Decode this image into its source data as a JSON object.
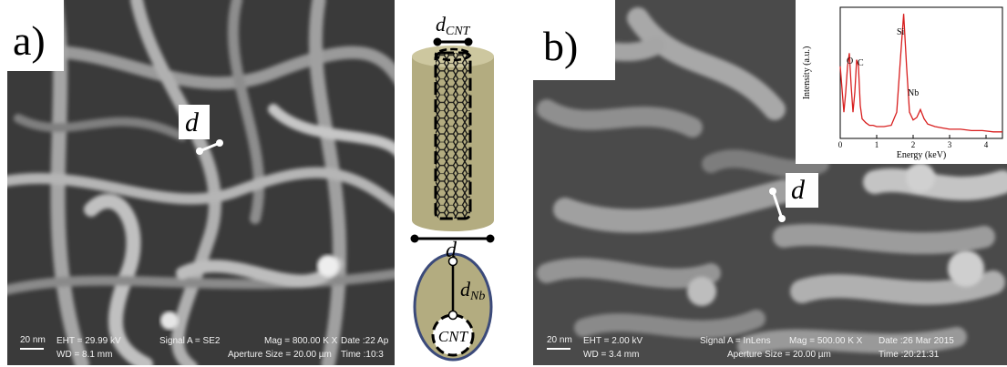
{
  "panel_a": {
    "label": "a)",
    "d_label": "d",
    "scale_bar": "20 nm",
    "info": [
      "EHT = 29.99 kV",
      "WD = 8.1 mm",
      "Signal A = SE2",
      "Aperture Size = 20.00 µm",
      "Mag = 800.00 K X",
      "Date :22 Ap",
      "Time :10:3"
    ]
  },
  "schematic": {
    "d_cnt": {
      "symbol": "d",
      "subscript": "CNT"
    },
    "d_label": "d",
    "d_nb": {
      "symbol": "d",
      "subscript": "Nb"
    },
    "cnt_label": "CNT"
  },
  "panel_b": {
    "label": "b)",
    "d_label": "d",
    "scale_bar": "20 nm",
    "info": [
      "EHT = 2.00 kV",
      "WD = 3.4 mm",
      "Signal A = InLens",
      "Aperture Size = 20.00 µm",
      "Mag = 500.00 K X",
      "Date :26 Mar 2015",
      "Time :20:21:31"
    ],
    "inset": {
      "type": "line",
      "x_label": "Energy (keV)",
      "y_label": "Intensity (a.u.)",
      "color": "#d81e1e",
      "xlim": [
        0,
        4.45
      ],
      "xticks": [
        0,
        1,
        2,
        3,
        4
      ],
      "ylim": [
        0,
        100
      ],
      "x": [
        0,
        0.1,
        0.15,
        0.2,
        0.25,
        0.3,
        0.35,
        0.4,
        0.45,
        0.5,
        0.55,
        0.6,
        0.7,
        0.8,
        0.9,
        1.0,
        1.2,
        1.4,
        1.55,
        1.65,
        1.74,
        1.82,
        1.9,
        2.0,
        2.1,
        2.2,
        2.3,
        2.4,
        2.6,
        2.8,
        3.0,
        3.3,
        3.6,
        3.9,
        4.2,
        4.45
      ],
      "values": [
        55,
        20,
        35,
        55,
        65,
        40,
        20,
        35,
        60,
        55,
        25,
        15,
        12,
        10,
        10,
        9,
        9,
        10,
        20,
        60,
        95,
        55,
        20,
        14,
        16,
        22,
        15,
        11,
        9,
        8,
        7,
        7,
        6,
        6,
        5,
        5
      ],
      "peak_labels": [
        "O",
        "C",
        "Si",
        "Nb"
      ]
    }
  }
}
